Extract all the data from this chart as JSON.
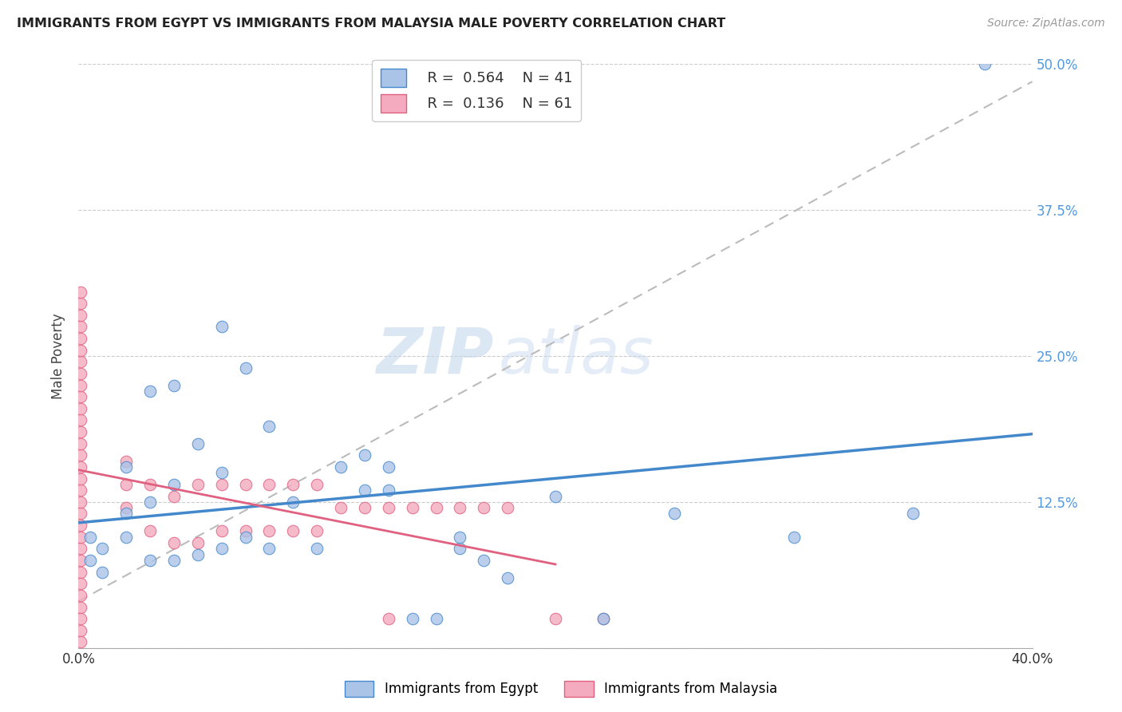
{
  "title": "IMMIGRANTS FROM EGYPT VS IMMIGRANTS FROM MALAYSIA MALE POVERTY CORRELATION CHART",
  "source": "Source: ZipAtlas.com",
  "ylabel": "Male Poverty",
  "xlim": [
    0.0,
    0.4
  ],
  "ylim": [
    0.0,
    0.5
  ],
  "egypt_R": 0.564,
  "egypt_N": 41,
  "malaysia_R": 0.136,
  "malaysia_N": 61,
  "egypt_color": "#aac4e8",
  "malaysia_color": "#f4aabf",
  "egypt_line_color": "#4488cc",
  "malaysia_line_color": "#e06080",
  "trendline_dashed_color": "#bbbbbb",
  "egypt_scatter_x": [
    0.005,
    0.005,
    0.01,
    0.01,
    0.02,
    0.02,
    0.02,
    0.03,
    0.03,
    0.04,
    0.04,
    0.05,
    0.05,
    0.06,
    0.06,
    0.07,
    0.08,
    0.08,
    0.09,
    0.1,
    0.11,
    0.12,
    0.12,
    0.13,
    0.14,
    0.15,
    0.16,
    0.16,
    0.17,
    0.18,
    0.2,
    0.22,
    0.25,
    0.3,
    0.35,
    0.38,
    0.13,
    0.06,
    0.07,
    0.04,
    0.03
  ],
  "egypt_scatter_y": [
    0.095,
    0.075,
    0.085,
    0.065,
    0.095,
    0.115,
    0.155,
    0.075,
    0.125,
    0.075,
    0.14,
    0.08,
    0.175,
    0.085,
    0.15,
    0.095,
    0.085,
    0.19,
    0.125,
    0.085,
    0.155,
    0.135,
    0.165,
    0.155,
    0.025,
    0.025,
    0.085,
    0.095,
    0.075,
    0.06,
    0.13,
    0.025,
    0.115,
    0.095,
    0.115,
    0.5,
    0.135,
    0.275,
    0.24,
    0.225,
    0.22
  ],
  "malaysia_scatter_x": [
    0.001,
    0.001,
    0.001,
    0.001,
    0.001,
    0.001,
    0.001,
    0.001,
    0.001,
    0.001,
    0.001,
    0.001,
    0.001,
    0.001,
    0.001,
    0.001,
    0.001,
    0.001,
    0.001,
    0.001,
    0.001,
    0.001,
    0.001,
    0.001,
    0.001,
    0.001,
    0.001,
    0.001,
    0.001,
    0.001,
    0.001,
    0.02,
    0.02,
    0.02,
    0.03,
    0.03,
    0.04,
    0.04,
    0.05,
    0.05,
    0.06,
    0.06,
    0.07,
    0.07,
    0.08,
    0.08,
    0.09,
    0.09,
    0.1,
    0.1,
    0.11,
    0.12,
    0.13,
    0.13,
    0.14,
    0.15,
    0.16,
    0.17,
    0.18,
    0.2,
    0.22
  ],
  "malaysia_scatter_y": [
    0.085,
    0.095,
    0.105,
    0.115,
    0.125,
    0.135,
    0.145,
    0.155,
    0.075,
    0.065,
    0.055,
    0.045,
    0.035,
    0.165,
    0.175,
    0.185,
    0.195,
    0.205,
    0.215,
    0.225,
    0.235,
    0.025,
    0.015,
    0.005,
    0.245,
    0.255,
    0.265,
    0.275,
    0.285,
    0.295,
    0.305,
    0.12,
    0.14,
    0.16,
    0.1,
    0.14,
    0.09,
    0.13,
    0.09,
    0.14,
    0.1,
    0.14,
    0.1,
    0.14,
    0.1,
    0.14,
    0.1,
    0.14,
    0.1,
    0.14,
    0.12,
    0.12,
    0.12,
    0.025,
    0.12,
    0.12,
    0.12,
    0.12,
    0.12,
    0.025,
    0.025
  ],
  "watermark_text": "ZIP",
  "watermark_text2": "atlas",
  "background_color": "#ffffff",
  "grid_color": "#cccccc"
}
